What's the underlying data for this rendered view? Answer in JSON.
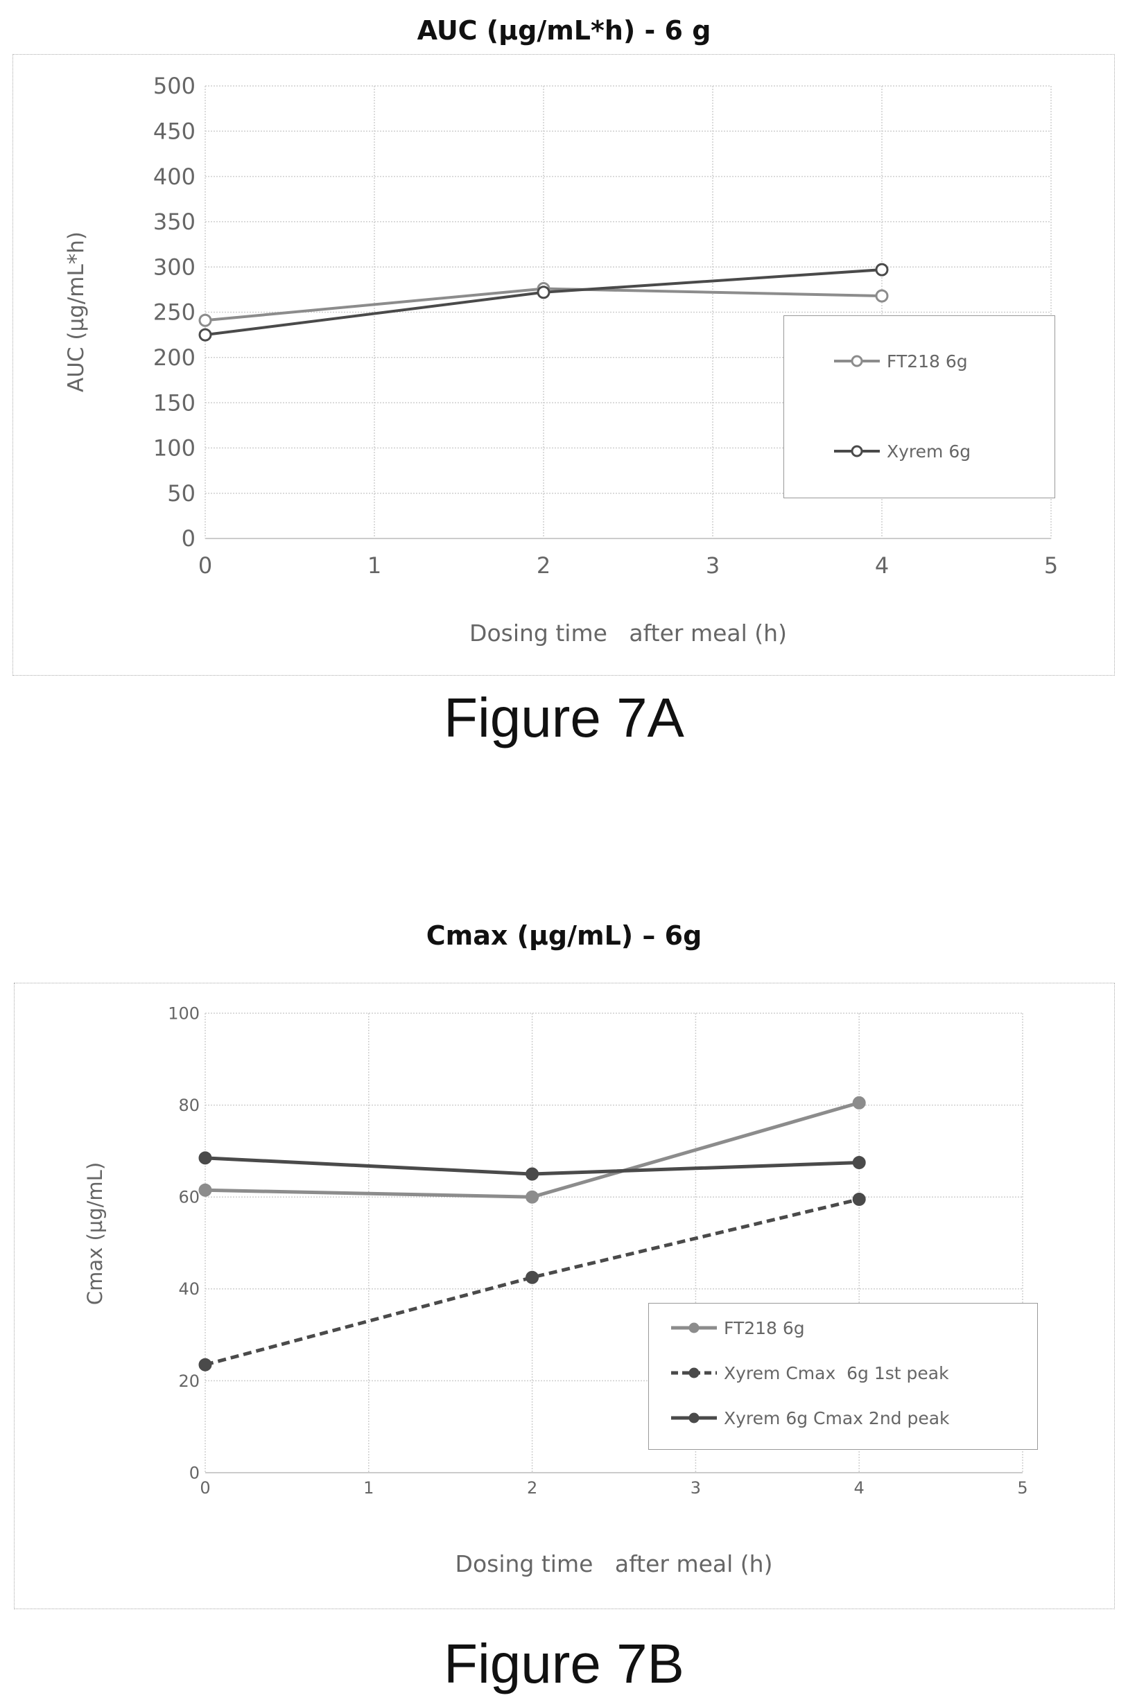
{
  "figure_a": {
    "title": "AUC (µg/mL*h) - 6 g",
    "caption": "Figure 7A"
  },
  "figure_b": {
    "title": "Cmax (µg/mL) – 6g",
    "caption": "Figure 7B"
  },
  "chart_data": [
    {
      "type": "line",
      "title": "AUC (µg/mL*h) - 6 g",
      "xlabel": "Dosing time   after meal (h)",
      "ylabel": "AUC (µg/mL*h)",
      "xlim": [
        0,
        5
      ],
      "ylim": [
        0,
        500
      ],
      "xticks": [
        0,
        1,
        2,
        3,
        4,
        5
      ],
      "yticks": [
        0,
        50,
        100,
        150,
        200,
        250,
        300,
        350,
        400,
        450,
        500
      ],
      "grid": true,
      "legend_position": "right",
      "series": [
        {
          "name": "FT218 6g",
          "x": [
            0,
            2,
            4
          ],
          "y": [
            241,
            276,
            268
          ],
          "color": "#8c8c8c",
          "style": "solid"
        },
        {
          "name": "Xyrem 6g",
          "x": [
            0,
            2,
            4
          ],
          "y": [
            225,
            272,
            297
          ],
          "color": "#4a4a4a",
          "style": "solid"
        }
      ]
    },
    {
      "type": "line",
      "title": "Cmax (µg/mL) – 6g",
      "xlabel": "Dosing time   after meal (h)",
      "ylabel": "Cmax (µg/mL)",
      "xlim": [
        0,
        5
      ],
      "ylim": [
        0,
        100
      ],
      "xticks": [
        0,
        1,
        2,
        3,
        4,
        5
      ],
      "yticks": [
        0,
        20,
        40,
        60,
        80,
        100
      ],
      "grid": true,
      "legend_position": "lower-right",
      "series": [
        {
          "name": "FT218 6g",
          "x": [
            0,
            2,
            4
          ],
          "y": [
            61.5,
            60,
            80.5
          ],
          "color": "#8c8c8c",
          "style": "solid"
        },
        {
          "name": "Xyrem Cmax  6g 1st peak",
          "x": [
            0,
            2,
            4
          ],
          "y": [
            23.5,
            42.5,
            59.5
          ],
          "color": "#4a4a4a",
          "style": "dashed"
        },
        {
          "name": "Xyrem 6g Cmax 2nd peak",
          "x": [
            0,
            2,
            4
          ],
          "y": [
            68.5,
            65,
            67.5
          ],
          "color": "#4a4a4a",
          "style": "solid"
        }
      ]
    }
  ]
}
